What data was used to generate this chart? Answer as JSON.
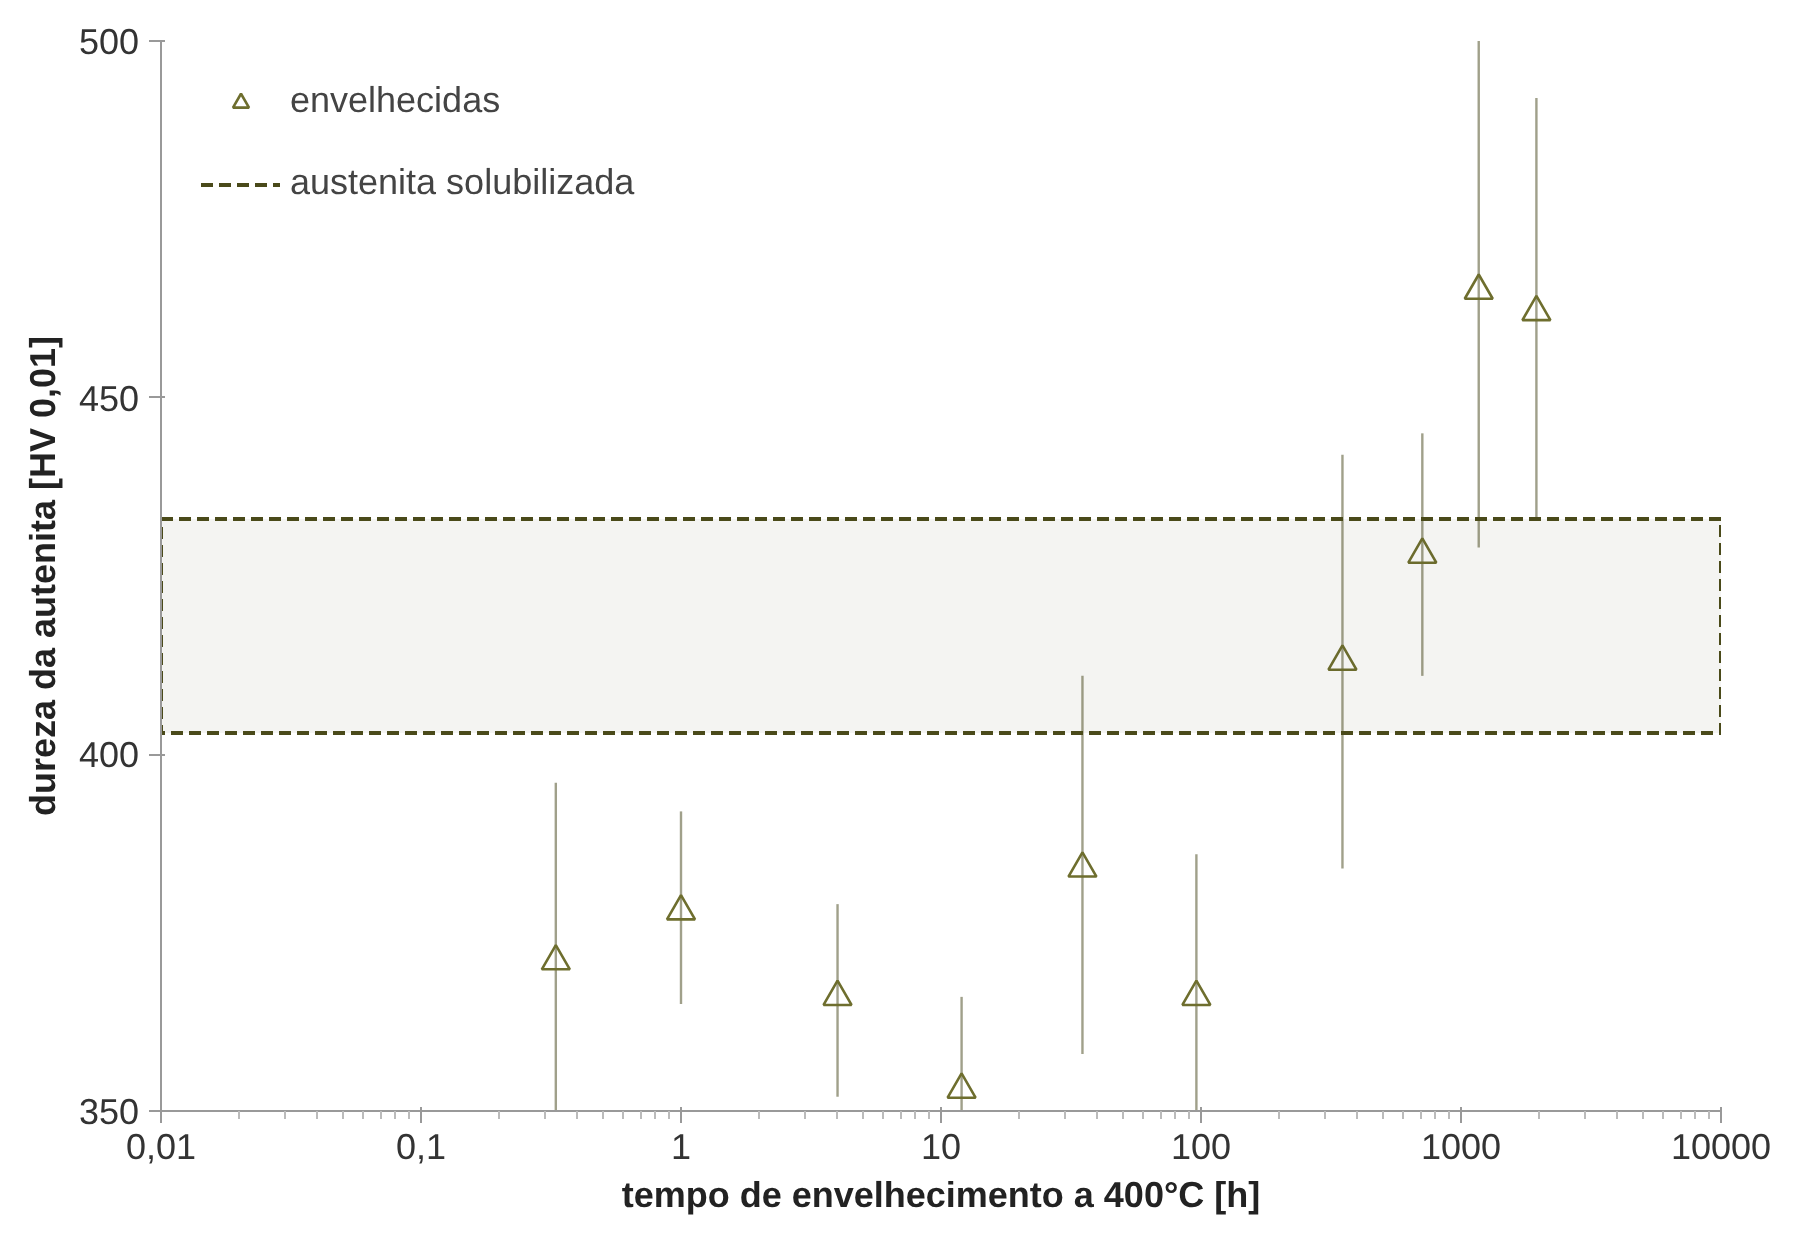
{
  "chart_data": {
    "type": "scatter",
    "xlabel": "tempo de envelhecimento a 400°C [h]",
    "ylabel": "dureza da autenita [HV 0,01]",
    "log": "x",
    "grid": false,
    "legend": "top left",
    "marker": "triangle",
    "xlim": [
      0.01,
      10000
    ],
    "ylim": [
      350,
      500
    ],
    "xticks": [
      {
        "value": 0.01,
        "label": "0,01"
      },
      {
        "value": 0.1,
        "label": "0,1"
      },
      1,
      10,
      100,
      1000,
      10000
    ],
    "yticks": [
      350,
      400,
      450,
      500
    ],
    "series": [
      {
        "name": "envelhecidas",
        "color": "#6e6e2e",
        "x": [
          0.33,
          1,
          4,
          12,
          35,
          96,
          350,
          710,
          1170,
          1950
        ],
        "values": [
          371,
          378,
          366,
          353,
          384,
          366,
          413,
          428,
          465,
          462
        ],
        "errors": [
          [
            350,
            396
          ],
          [
            365,
            392
          ],
          [
            352,
            379
          ],
          [
            350,
            366
          ],
          [
            358,
            411
          ],
          [
            350,
            386
          ],
          [
            384,
            442
          ],
          [
            411,
            445
          ],
          [
            429,
            500
          ],
          [
            433,
            492
          ]
        ]
      }
    ],
    "bands": [
      {
        "axis": "y",
        "from": 403,
        "to": 433,
        "label": "austenita solubilizada",
        "color": "#4a4a1a"
      }
    ],
    "line_style": "dashed"
  }
}
